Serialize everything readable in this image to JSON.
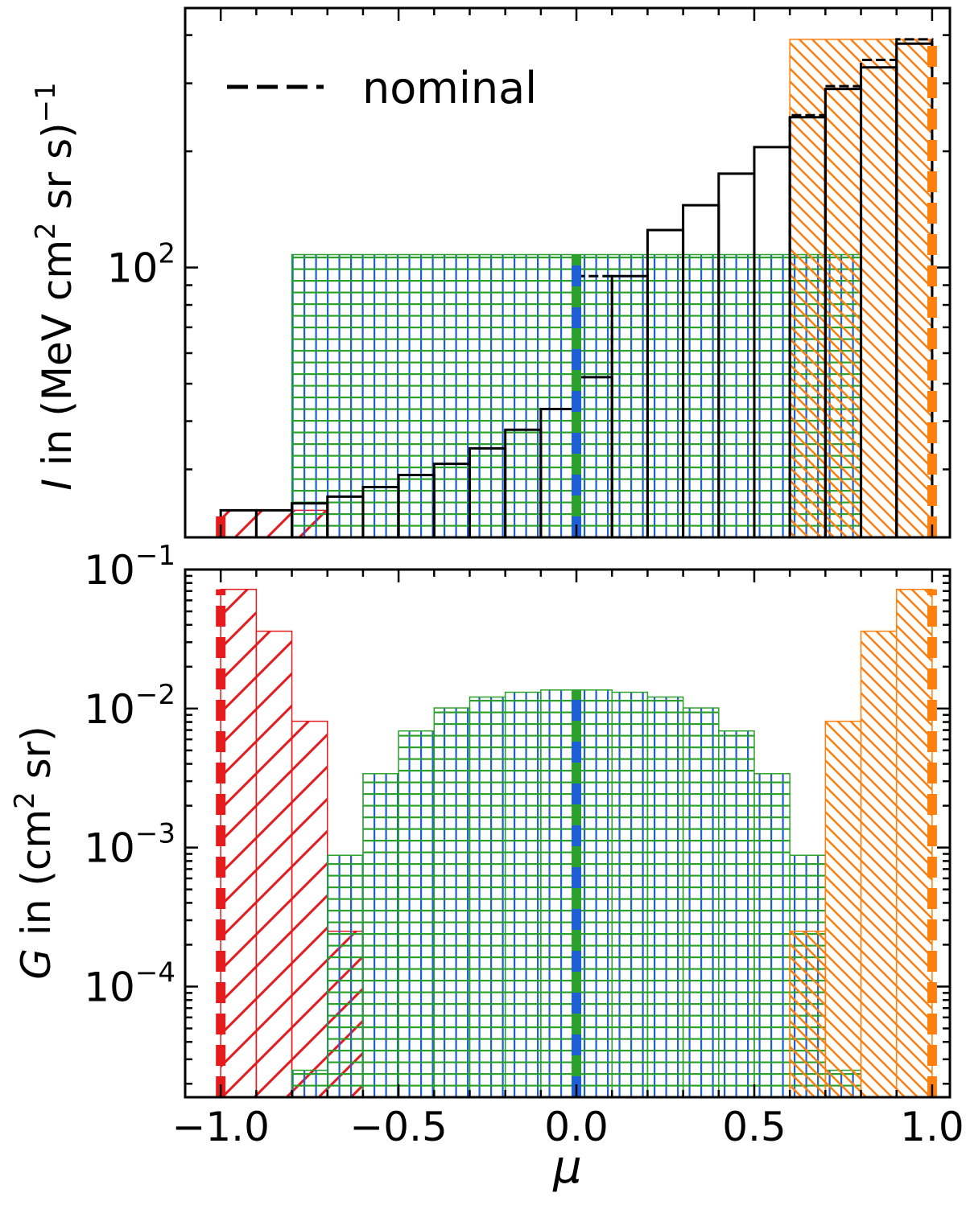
{
  "colors": {
    "nominal": "#000000",
    "red": "#e41a1c",
    "orange": "#ff7f0e",
    "green": "#2ca02c",
    "blue": "#1f5fd6"
  },
  "legend": {
    "entries": [
      "nominal"
    ],
    "placement": "top-left"
  },
  "chart_data": [
    {
      "type": "bar",
      "panel": "top",
      "ylabel_prefix": "I",
      "ylabel_suffix": " in (MeV cm",
      "ylabel_sup1": "2",
      "ylabel_mid": " sr s)",
      "ylabel_sup2": "−1",
      "yscale": "log",
      "xlim": [
        -1.1,
        1.05
      ],
      "ylim": [
        20,
        470
      ],
      "yticks": [
        {
          "base": "10",
          "exp": "2",
          "value": 100
        }
      ],
      "nominal_histogram": {
        "name": "nominal",
        "edges": [
          -1.0,
          -0.9,
          -0.8,
          -0.7,
          -0.6,
          -0.5,
          -0.4,
          -0.3,
          -0.2,
          -0.1,
          0.0,
          0.1,
          0.2,
          0.3,
          0.4,
          0.5,
          0.6,
          0.7,
          0.8,
          0.9,
          1.0
        ],
        "values": [
          23.5,
          23.5,
          24.5,
          25.5,
          27,
          29,
          31,
          34,
          38,
          43,
          52,
          95,
          125,
          145,
          175,
          205,
          245,
          290,
          330,
          380
        ]
      },
      "nominal_dashed_steps": [
        {
          "x0": 0.0,
          "x1": 0.1,
          "y": 95
        },
        {
          "x0": 0.6,
          "x1": 0.7,
          "y": 248
        },
        {
          "x0": 0.7,
          "x1": 0.8,
          "y": 295
        },
        {
          "x0": 0.8,
          "x1": 0.9,
          "y": 345
        },
        {
          "x0": 0.9,
          "x1": 1.0,
          "y": 390
        }
      ],
      "regions": [
        {
          "color": "red",
          "hatch": "forward",
          "x0": -1.0,
          "x1": -0.7,
          "top": 23.5
        },
        {
          "color": "blue",
          "hatch": "grid",
          "x0": -0.8,
          "x1": 0.8,
          "top": 108
        },
        {
          "color": "green",
          "hatch": "grid",
          "x0": -0.8,
          "x1": 0.8,
          "top": 108
        },
        {
          "color": "orange",
          "hatch": "backward",
          "x0": 0.6,
          "x1": 1.0,
          "top": 390
        }
      ],
      "vertical_lines": [
        {
          "color": "red",
          "x": -1.0,
          "style": "dashed",
          "y0": 20,
          "y1": 23.5
        },
        {
          "color": "green",
          "x": 0.0,
          "style": "dashed-alt",
          "y0": 20,
          "y1": 108
        },
        {
          "color": "orange",
          "x": 1.0,
          "style": "dashed",
          "y0": 20,
          "y1": 390
        }
      ]
    },
    {
      "type": "bar",
      "panel": "bottom",
      "xlabel": "μ",
      "ylabel_prefix": "G",
      "ylabel_suffix": " in (cm",
      "ylabel_sup1": "2",
      "ylabel_mid": " sr)",
      "yscale": "log",
      "xlim": [
        -1.1,
        1.05
      ],
      "ylim": [
        1.6e-05,
        0.1
      ],
      "xticks": [
        {
          "value": -1.0,
          "label": "−1.0"
        },
        {
          "value": -0.5,
          "label": "−0.5"
        },
        {
          "value": 0.0,
          "label": "0.0"
        },
        {
          "value": 0.5,
          "label": "0.5"
        },
        {
          "value": 1.0,
          "label": "1.0"
        }
      ],
      "yticks": [
        {
          "base": "10",
          "exp": "−1",
          "value": 0.1
        },
        {
          "base": "10",
          "exp": "−2",
          "value": 0.01
        },
        {
          "base": "10",
          "exp": "−3",
          "value": 0.001
        },
        {
          "base": "10",
          "exp": "−4",
          "value": 0.0001
        }
      ],
      "series": [
        {
          "name": "red",
          "hatch": "forward",
          "edges": [
            -1.0,
            -0.9,
            -0.8,
            -0.7,
            -0.6
          ],
          "values": [
            0.072,
            0.036,
            0.0081,
            0.00025
          ]
        },
        {
          "name": "grid",
          "hatch": "grid",
          "edges": [
            -0.8,
            -0.7,
            -0.6,
            -0.5,
            -0.4,
            -0.3,
            -0.2,
            -0.1,
            0.0,
            0.1,
            0.2,
            0.3,
            0.4,
            0.5,
            0.6,
            0.7,
            0.8
          ],
          "values": [
            2.5e-05,
            0.00088,
            0.0034,
            0.0069,
            0.0101,
            0.0121,
            0.0131,
            0.0136,
            0.0136,
            0.0131,
            0.0121,
            0.0101,
            0.0069,
            0.0034,
            0.00088,
            2.5e-05
          ]
        },
        {
          "name": "orange",
          "hatch": "backward",
          "edges": [
            0.6,
            0.7,
            0.8,
            0.9,
            1.0
          ],
          "values": [
            0.00025,
            0.0081,
            0.036,
            0.072
          ]
        }
      ],
      "vertical_lines": [
        {
          "color": "red",
          "x": -1.0,
          "style": "dashed",
          "y1": 0.072
        },
        {
          "color": "green",
          "x": 0.0,
          "style": "dashed-alt",
          "y1": 0.0136
        },
        {
          "color": "orange",
          "x": 1.0,
          "style": "dashed",
          "y1": 0.072
        }
      ]
    }
  ]
}
